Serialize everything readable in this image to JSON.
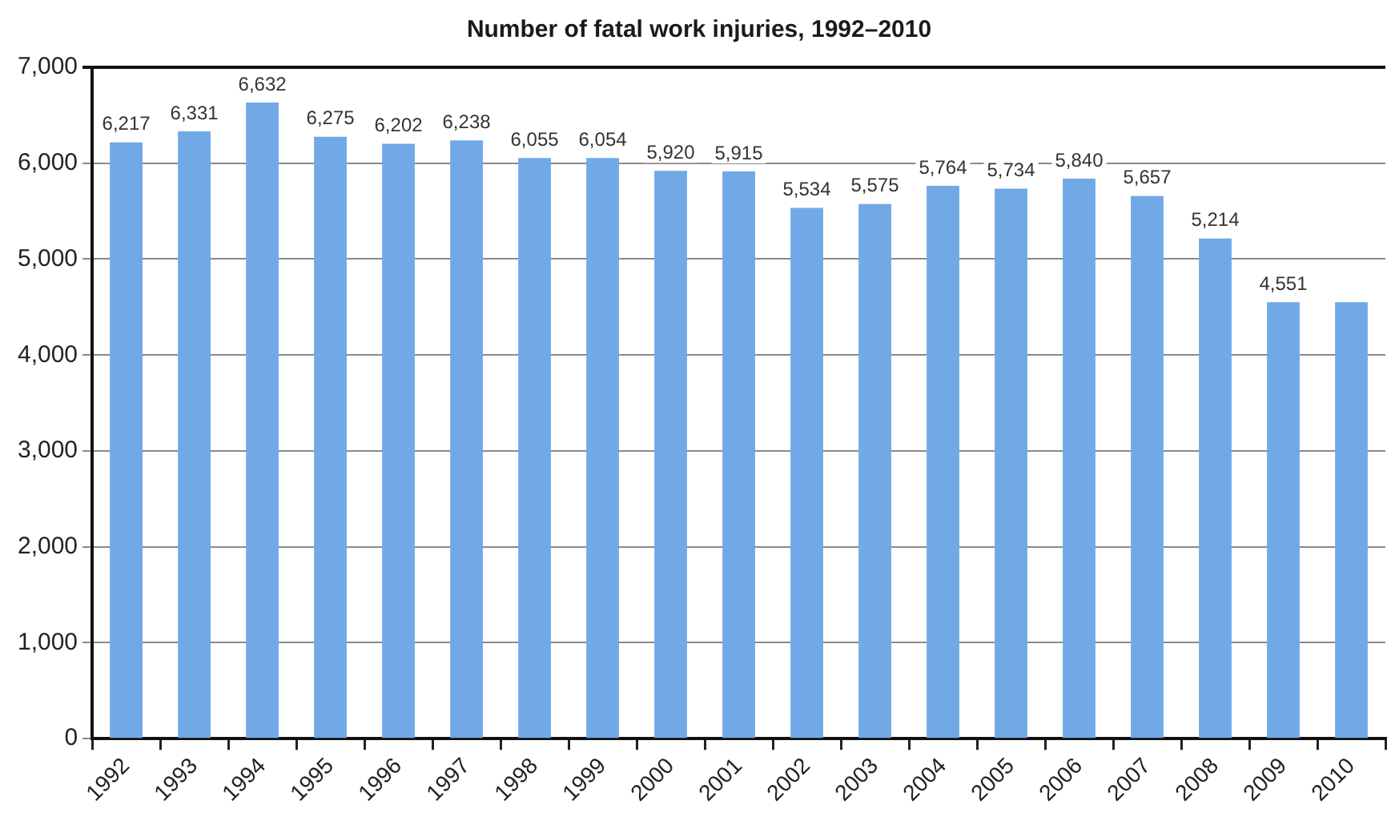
{
  "chart_data": {
    "type": "bar",
    "title": "Number of fatal work injuries, 1992–2010",
    "categories": [
      "1992",
      "1993",
      "1994",
      "1995",
      "1996",
      "1997",
      "1998",
      "1999",
      "2000",
      "2001",
      "2002",
      "2003",
      "2004",
      "2005",
      "2006",
      "2007",
      "2008",
      "2009",
      "2010"
    ],
    "values": [
      6217,
      6331,
      6632,
      6275,
      6202,
      6238,
      6055,
      6054,
      5920,
      5915,
      5534,
      5575,
      5764,
      5734,
      5840,
      5657,
      5214,
      4551,
      4550
    ],
    "value_labels": [
      "6,217",
      "6,331",
      "6,632",
      "6,275",
      "6,202",
      "6,238",
      "6,055",
      "6,054",
      "5,920",
      "5,915",
      "5,534",
      "5,575",
      "5,764",
      "5,734",
      "5,840",
      "5,657",
      "5,214",
      "4,551",
      null
    ],
    "color": "#70a9e6",
    "ylim": [
      0,
      7000
    ],
    "yticks": [
      0,
      {
        "value": 1000,
        "label": "1,000"
      },
      {
        "value": 2000,
        "label": "2,000"
      },
      {
        "value": 3000,
        "label": "3,000"
      },
      {
        "value": 4000,
        "label": "4,000"
      },
      {
        "value": 5000,
        "label": "5,000"
      },
      {
        "value": 6000,
        "label": "6,000"
      },
      {
        "value": 7000,
        "label": "7,000"
      }
    ],
    "grid": "y"
  }
}
